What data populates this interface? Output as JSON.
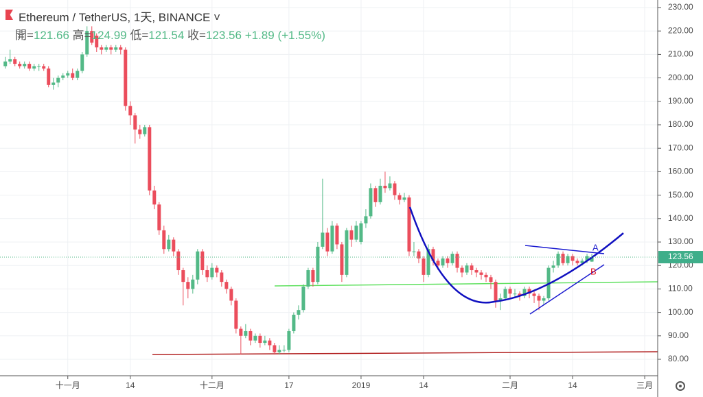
{
  "header": {
    "symbol": "Ethereum / TetherUS, 1天, BINANCE",
    "open_label": "開=",
    "high_label": "高=",
    "low_label": "低=",
    "close_label": "收=",
    "change": "+1.89",
    "change_pct": "(+1.55%)"
  },
  "chart_data": {
    "type": "candlestick",
    "up_color": "#53b987",
    "down_color": "#eb4d5c",
    "grid": true,
    "xlim": [
      -1.1,
      135.7
    ],
    "ylim": [
      80,
      230
    ],
    "xticks": [
      {
        "value": 13,
        "label": "十一月"
      },
      {
        "value": 26,
        "label": "14"
      },
      {
        "value": 43,
        "label": "十二月"
      },
      {
        "value": 59,
        "label": "17"
      },
      {
        "value": 74,
        "label": "2019"
      },
      {
        "value": 87,
        "label": "14"
      },
      {
        "value": 105,
        "label": "二月"
      },
      {
        "value": 118,
        "label": "14"
      },
      {
        "value": 133,
        "label": "三月"
      }
    ],
    "yticks": [
      {
        "value": 80,
        "label": "80.00"
      },
      {
        "value": 90,
        "label": "90.00"
      },
      {
        "value": 100,
        "label": "100.00"
      },
      {
        "value": 110,
        "label": "110.00"
      },
      {
        "value": 120,
        "label": "120.00"
      },
      {
        "value": 130,
        "label": "130.00"
      },
      {
        "value": 140,
        "label": "140.00"
      },
      {
        "value": 150,
        "label": "150.00"
      },
      {
        "value": 160,
        "label": "160.00"
      },
      {
        "value": 170,
        "label": "170.00"
      },
      {
        "value": 180,
        "label": "180.00"
      },
      {
        "value": 190,
        "label": "190.00"
      },
      {
        "value": 200,
        "label": "200.00"
      },
      {
        "value": 210,
        "label": "210.00"
      },
      {
        "value": 220,
        "label": "220.00"
      },
      {
        "value": 230,
        "label": "230.00"
      }
    ],
    "annotations": [
      "A",
      "B"
    ],
    "candles": [
      [
        205,
        209,
        204,
        207
      ],
      [
        207,
        212,
        206,
        208
      ],
      [
        208,
        209,
        205,
        206
      ],
      [
        206,
        207,
        204,
        205
      ],
      [
        205,
        207,
        204,
        206
      ],
      [
        206,
        207,
        203,
        204
      ],
      [
        204,
        206,
        203,
        205
      ],
      [
        205,
        206,
        203,
        205
      ],
      [
        205,
        206,
        203,
        204
      ],
      [
        204,
        205,
        196,
        197
      ],
      [
        197,
        200,
        195,
        198
      ],
      [
        198,
        201,
        196,
        200
      ],
      [
        200,
        202,
        199,
        201
      ],
      [
        201,
        203,
        200,
        202
      ],
      [
        202,
        204,
        199,
        200
      ],
      [
        200,
        204,
        199,
        203
      ],
      [
        203,
        211,
        202,
        210
      ],
      [
        210,
        222,
        209,
        220
      ],
      [
        220,
        222,
        214,
        215
      ],
      [
        218,
        219,
        211,
        213
      ],
      [
        213,
        214,
        210,
        212
      ],
      [
        212,
        214,
        211,
        213
      ],
      [
        213,
        214,
        210,
        212
      ],
      [
        212,
        214,
        211,
        213
      ],
      [
        213,
        214,
        210,
        212
      ],
      [
        212,
        213,
        186,
        188
      ],
      [
        188,
        190,
        180,
        184
      ],
      [
        184,
        185,
        172,
        178
      ],
      [
        178,
        180,
        174,
        176
      ],
      [
        176,
        180,
        175,
        179
      ],
      [
        179,
        180,
        150,
        152
      ],
      [
        152,
        154,
        144,
        146
      ],
      [
        146,
        147,
        133,
        135
      ],
      [
        135,
        137,
        125,
        127
      ],
      [
        127,
        133,
        126,
        131
      ],
      [
        131,
        132,
        124,
        126
      ],
      [
        126,
        127,
        116,
        118
      ],
      [
        118,
        119,
        103,
        113
      ],
      [
        113,
        115,
        106,
        110
      ],
      [
        110,
        116,
        108,
        114
      ],
      [
        114,
        127,
        112,
        126
      ],
      [
        126,
        127,
        116,
        118
      ],
      [
        118,
        120,
        113,
        115
      ],
      [
        115,
        121,
        114,
        119
      ],
      [
        119,
        120,
        115,
        117
      ],
      [
        117,
        118,
        111,
        113
      ],
      [
        113,
        114,
        108,
        110
      ],
      [
        110,
        111,
        103,
        105
      ],
      [
        105,
        106,
        91,
        93
      ],
      [
        93,
        94,
        82,
        90
      ],
      [
        90,
        95,
        89,
        92
      ],
      [
        92,
        93,
        86,
        88
      ],
      [
        88,
        91,
        87,
        90
      ],
      [
        90,
        91,
        85,
        87
      ],
      [
        87,
        90,
        86,
        88
      ],
      [
        88,
        89,
        84,
        86
      ],
      [
        86,
        87,
        82,
        83
      ],
      [
        83,
        86,
        82,
        84
      ],
      [
        84,
        86,
        83,
        84
      ],
      [
        84,
        93,
        83,
        92
      ],
      [
        92,
        100,
        91,
        99
      ],
      [
        99,
        103,
        97,
        101
      ],
      [
        101,
        112,
        100,
        111
      ],
      [
        111,
        119,
        110,
        118
      ],
      [
        118,
        119,
        111,
        113
      ],
      [
        113,
        130,
        112,
        128
      ],
      [
        128,
        157,
        127,
        134
      ],
      [
        134,
        136,
        124,
        126
      ],
      [
        126,
        139,
        125,
        137
      ],
      [
        137,
        138,
        127,
        129
      ],
      [
        129,
        130,
        113,
        116
      ],
      [
        116,
        136,
        115,
        135
      ],
      [
        135,
        137,
        128,
        131
      ],
      [
        131,
        139,
        130,
        137
      ],
      [
        130,
        139,
        129,
        138
      ],
      [
        138,
        144,
        136,
        141
      ],
      [
        141,
        155,
        140,
        153
      ],
      [
        153,
        154,
        145,
        147
      ],
      [
        147,
        157,
        146,
        154
      ],
      [
        154,
        160,
        151,
        153
      ],
      [
        153,
        158,
        152,
        155
      ],
      [
        155,
        156,
        148,
        150
      ],
      [
        150,
        151,
        146,
        148
      ],
      [
        148,
        151,
        147,
        149
      ],
      [
        149,
        150,
        124,
        126
      ],
      [
        126,
        130,
        124,
        126
      ],
      [
        126,
        127,
        121,
        123
      ],
      [
        123,
        124,
        113,
        116
      ],
      [
        116,
        129,
        115,
        127
      ],
      [
        127,
        128,
        120,
        122
      ],
      [
        122,
        123,
        118,
        120
      ],
      [
        120,
        124,
        119,
        123
      ],
      [
        123,
        124,
        119,
        121
      ],
      [
        121,
        126,
        120,
        125
      ],
      [
        125,
        126,
        117,
        119
      ],
      [
        119,
        120,
        115,
        117
      ],
      [
        117,
        121,
        116,
        120
      ],
      [
        120,
        121,
        116,
        118
      ],
      [
        118,
        119,
        115,
        117
      ],
      [
        117,
        118,
        114,
        116
      ],
      [
        116,
        117,
        113,
        115
      ],
      [
        115,
        116,
        110,
        113
      ],
      [
        113,
        114,
        102,
        105
      ],
      [
        105,
        108,
        101,
        106
      ],
      [
        106,
        111,
        105,
        110
      ],
      [
        110,
        111,
        106,
        108
      ],
      [
        108,
        110,
        106,
        108
      ],
      [
        108,
        109,
        105,
        107
      ],
      [
        107,
        111,
        106,
        110
      ],
      [
        110,
        111,
        106,
        108
      ],
      [
        108,
        109,
        104,
        107
      ],
      [
        107,
        108,
        101,
        105
      ],
      [
        105,
        107,
        103,
        106
      ],
      [
        106,
        120,
        105,
        119
      ],
      [
        119,
        122,
        117,
        120
      ],
      [
        120,
        126,
        119,
        125
      ],
      [
        125,
        126,
        120,
        121
      ],
      [
        121,
        125,
        120,
        124
      ],
      [
        124,
        125,
        120,
        122
      ],
      [
        122,
        123,
        120,
        121
      ],
      [
        121,
        123,
        120,
        122
      ],
      [
        122,
        125,
        121,
        124
      ],
      [
        121.66,
        124.99,
        121.54,
        123.56
      ]
    ]
  }
}
